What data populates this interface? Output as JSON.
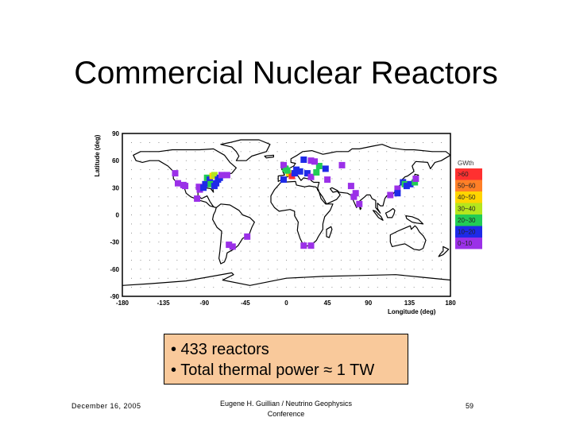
{
  "slide": {
    "title": "Commercial Nuclear Reactors",
    "bullets": [
      "• 433 reactors",
      "• Total thermal power ≈ 1 TW"
    ],
    "footer_date": "December 16, 2005",
    "footer_author_line1": "Eugene H. Guillian / Neutrino Geophysics",
    "footer_author_line2": "Conference",
    "page_number": "59"
  },
  "chart_data": {
    "type": "heatmap",
    "xlabel": "Longitude (deg)",
    "ylabel": "Latitude (deg)",
    "xlim": [
      -180,
      180
    ],
    "ylim": [
      -90,
      90
    ],
    "xticks": [
      -180,
      -135,
      -90,
      -45,
      0,
      45,
      90,
      135,
      180
    ],
    "yticks": [
      90,
      60,
      30,
      0,
      -30,
      -60,
      -90
    ],
    "grid": true,
    "legend": {
      "title": "GWth",
      "placement": "right",
      "bins": [
        {
          "label": ">60",
          "color": "#ff3030"
        },
        {
          "label": "50~60",
          "color": "#ff7f27"
        },
        {
          "label": "40~50",
          "color": "#ffd400"
        },
        {
          "label": "30~40",
          "color": "#b5e61d"
        },
        {
          "label": "20~30",
          "color": "#22cc55"
        },
        {
          "label": "10~20",
          "color": "#1e2ae8"
        },
        {
          "label": "0~10",
          "color": "#9b30e8"
        }
      ]
    },
    "cells": [
      {
        "lon": -123,
        "lat": 47,
        "bin": "0~10"
      },
      {
        "lon": -120,
        "lat": 36,
        "bin": "0~10"
      },
      {
        "lon": -114,
        "lat": 34,
        "bin": "0~10"
      },
      {
        "lon": -112,
        "lat": 33,
        "bin": "0~10"
      },
      {
        "lon": -96,
        "lat": 29,
        "bin": "0~10"
      },
      {
        "lon": -97,
        "lat": 32,
        "bin": "0~10"
      },
      {
        "lon": -92,
        "lat": 31,
        "bin": "10~20"
      },
      {
        "lon": -90,
        "lat": 35,
        "bin": "10~20"
      },
      {
        "lon": -88,
        "lat": 42,
        "bin": "20~30"
      },
      {
        "lon": -85,
        "lat": 40,
        "bin": "10~20"
      },
      {
        "lon": -84,
        "lat": 35,
        "bin": "20~30"
      },
      {
        "lon": -82,
        "lat": 44,
        "bin": "40~50"
      },
      {
        "lon": -80,
        "lat": 45,
        "bin": "30~40"
      },
      {
        "lon": -80,
        "lat": 33,
        "bin": "10~20"
      },
      {
        "lon": -78,
        "lat": 36,
        "bin": "10~20"
      },
      {
        "lon": -76,
        "lat": 40,
        "bin": "10~20"
      },
      {
        "lon": -74,
        "lat": 42,
        "bin": "10~20"
      },
      {
        "lon": -72,
        "lat": 45,
        "bin": "0~10"
      },
      {
        "lon": -66,
        "lat": 45,
        "bin": "0~10"
      },
      {
        "lon": -99,
        "lat": 19,
        "bin": "0~10"
      },
      {
        "lon": -44,
        "lat": -23,
        "bin": "0~10"
      },
      {
        "lon": -60,
        "lat": -34,
        "bin": "0~10"
      },
      {
        "lon": -64,
        "lat": -32,
        "bin": "0~10"
      },
      {
        "lon": -2,
        "lat": 52,
        "bin": "20~30"
      },
      {
        "lon": -4,
        "lat": 56,
        "bin": "0~10"
      },
      {
        "lon": 2,
        "lat": 47,
        "bin": "40~50"
      },
      {
        "lon": 5,
        "lat": 44,
        "bin": ">60"
      },
      {
        "lon": 0,
        "lat": 50,
        "bin": "20~30"
      },
      {
        "lon": 10,
        "lat": 51,
        "bin": "10~20"
      },
      {
        "lon": 14,
        "lat": 49,
        "bin": "10~20"
      },
      {
        "lon": 8,
        "lat": 47,
        "bin": "10~20"
      },
      {
        "lon": -4,
        "lat": 40,
        "bin": "10~20"
      },
      {
        "lon": 18,
        "lat": 62,
        "bin": "10~20"
      },
      {
        "lon": 26,
        "lat": 61,
        "bin": "0~10"
      },
      {
        "lon": 22,
        "lat": 47,
        "bin": "10~20"
      },
      {
        "lon": 26,
        "lat": 43,
        "bin": "0~10"
      },
      {
        "lon": 32,
        "lat": 48,
        "bin": "20~30"
      },
      {
        "lon": 35,
        "lat": 55,
        "bin": "20~30"
      },
      {
        "lon": 42,
        "lat": 52,
        "bin": "10~20"
      },
      {
        "lon": 44,
        "lat": 40,
        "bin": "0~10"
      },
      {
        "lon": 60,
        "lat": 56,
        "bin": "0~10"
      },
      {
        "lon": 30,
        "lat": 60,
        "bin": "0~10"
      },
      {
        "lon": 73,
        "lat": 21,
        "bin": "0~10"
      },
      {
        "lon": 75,
        "lat": 25,
        "bin": "0~10"
      },
      {
        "lon": 70,
        "lat": 33,
        "bin": "0~10"
      },
      {
        "lon": 79,
        "lat": 13,
        "bin": "0~10"
      },
      {
        "lon": 113,
        "lat": 23,
        "bin": "0~10"
      },
      {
        "lon": 121,
        "lat": 30,
        "bin": "0~10"
      },
      {
        "lon": 121,
        "lat": 25,
        "bin": "10~20"
      },
      {
        "lon": 127,
        "lat": 37,
        "bin": "10~20"
      },
      {
        "lon": 129,
        "lat": 35,
        "bin": "20~30"
      },
      {
        "lon": 131,
        "lat": 33,
        "bin": "10~20"
      },
      {
        "lon": 135,
        "lat": 35,
        "bin": "10~20"
      },
      {
        "lon": 140,
        "lat": 37,
        "bin": "20~30"
      },
      {
        "lon": 141,
        "lat": 41,
        "bin": "0~10"
      },
      {
        "lon": 26,
        "lat": -33,
        "bin": "0~10"
      },
      {
        "lon": 18,
        "lat": -33,
        "bin": "0~10"
      }
    ]
  }
}
